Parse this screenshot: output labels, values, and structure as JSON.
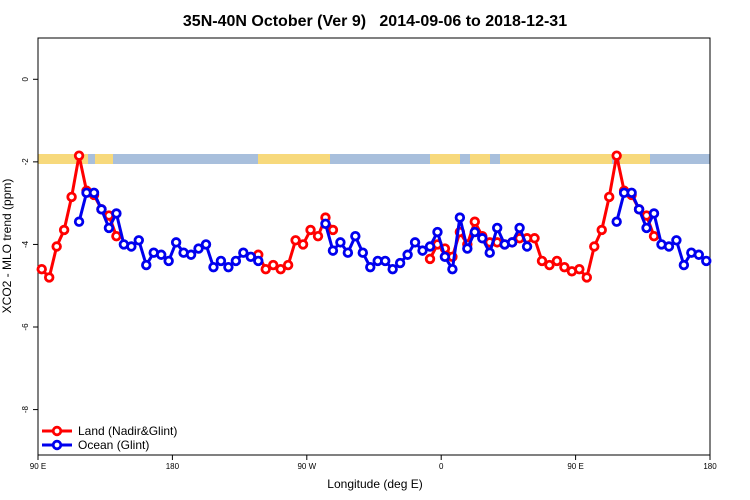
{
  "chart_data": {
    "type": "line",
    "title": "35N-40N October (Ver 9)   2014-09-06 to 2018-12-31",
    "x_label": "Longitude (deg E)",
    "y_label": "XCO2 - MLO trend (ppm)",
    "x": [
      92.5,
      97.5,
      102.5,
      107.5,
      112.5,
      117.5,
      122.5,
      127.5,
      132.5,
      137.5,
      142.5,
      147.5,
      152.5,
      157.5,
      162.5,
      167.5,
      172.5,
      177.5,
      182.5,
      187.5,
      192.5,
      197.5,
      202.5,
      207.5,
      212.5,
      217.5,
      222.5,
      227.5,
      232.5,
      237.5,
      242.5,
      247.5,
      252.5,
      257.5,
      262.5,
      267.5,
      272.5,
      277.5,
      282.5,
      287.5,
      292.5,
      297.5,
      302.5,
      307.5,
      312.5,
      317.5,
      322.5,
      327.5,
      332.5,
      337.5,
      342.5,
      347.5,
      352.5,
      357.5,
      362.5,
      367.5,
      372.5,
      377.5,
      382.5,
      387.5,
      392.5,
      397.5,
      402.5,
      407.5,
      412.5,
      417.5,
      422.5,
      427.5,
      432.5,
      437.5,
      442.5,
      447.5,
      452.5,
      457.5,
      462.5,
      467.5,
      472.5,
      477.5,
      482.5,
      487.5,
      492.5,
      497.5,
      502.5,
      507.5,
      512.5,
      517.5,
      522.5,
      527.5,
      532.5,
      537.5
    ],
    "series": [
      {
        "name": "Land (Nadir&Glint)",
        "color": "#ff0000",
        "values": [
          -4.6,
          -4.8,
          -4.05,
          -3.65,
          -2.85,
          -1.85,
          -2.7,
          -2.8,
          -3.15,
          -3.3,
          -3.8,
          null,
          null,
          null,
          null,
          null,
          null,
          null,
          null,
          null,
          null,
          null,
          null,
          null,
          null,
          null,
          null,
          null,
          null,
          -4.25,
          -4.6,
          -4.5,
          -4.6,
          -4.5,
          -3.9,
          -4.0,
          -3.65,
          -3.8,
          -3.35,
          -3.65,
          null,
          null,
          null,
          null,
          null,
          null,
          null,
          null,
          null,
          null,
          null,
          null,
          -4.35,
          -4.0,
          -4.1,
          -4.3,
          -3.7,
          -4.0,
          -3.45,
          -3.8,
          -3.95,
          -3.95,
          -4.0,
          -3.95,
          -3.85,
          -3.85,
          -3.85,
          -4.4,
          -4.5,
          -4.4,
          -4.55,
          -4.65,
          -4.6,
          -4.8,
          -4.05,
          -3.65,
          -2.85,
          -1.85,
          -2.7,
          -2.8,
          -3.15,
          -3.3,
          -3.8,
          null,
          null,
          null,
          null,
          null,
          null,
          null
        ]
      },
      {
        "name": "Ocean (Glint)",
        "color": "#0000ee",
        "values": [
          null,
          null,
          null,
          null,
          null,
          -3.45,
          -2.75,
          -2.75,
          -3.15,
          -3.6,
          -3.25,
          -4.0,
          -4.05,
          -3.9,
          -4.5,
          -4.2,
          -4.25,
          -4.4,
          -3.95,
          -4.2,
          -4.25,
          -4.1,
          -4.0,
          -4.55,
          -4.4,
          -4.55,
          -4.4,
          -4.2,
          -4.3,
          -4.4,
          null,
          null,
          null,
          null,
          null,
          null,
          null,
          null,
          -3.5,
          -4.15,
          -3.95,
          -4.2,
          -3.8,
          -4.2,
          -4.55,
          -4.4,
          -4.4,
          -4.6,
          -4.45,
          -4.25,
          -3.95,
          -4.15,
          -4.05,
          -3.7,
          -4.3,
          -4.6,
          -3.35,
          -4.1,
          -3.7,
          -3.85,
          -4.2,
          -3.6,
          -4.0,
          -3.95,
          -3.6,
          -4.05,
          null,
          null,
          null,
          null,
          null,
          null,
          null,
          null,
          null,
          null,
          null,
          -3.45,
          -2.75,
          -2.75,
          -3.15,
          -3.6,
          -3.25,
          -4.0,
          -4.05,
          -3.9,
          -4.5,
          -4.2,
          -4.25,
          -4.4
        ]
      }
    ],
    "xlim": [
      90,
      540
    ],
    "xticks": [
      {
        "value": 90,
        "label": "90 E"
      },
      180,
      {
        "value": 270,
        "label": "90 W"
      },
      {
        "value": 360,
        "label": "0"
      },
      {
        "value": 450,
        "label": "90 E"
      },
      180
    ],
    "ylim": [
      -9.1,
      1.0
    ],
    "yticks": [
      0,
      -2,
      -4,
      -6,
      -8
    ],
    "legend": "bottom-left"
  }
}
